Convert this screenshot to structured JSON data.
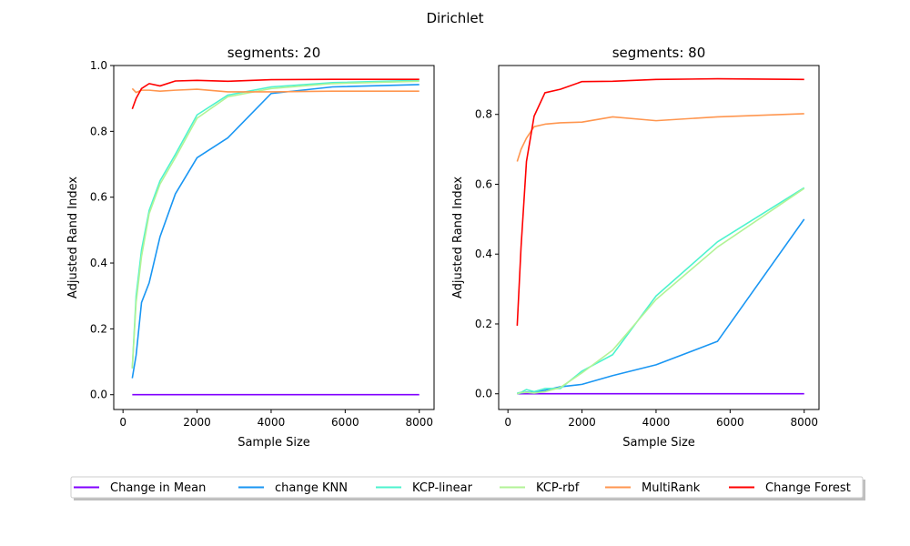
{
  "figure": {
    "suptitle": "Dirichlet"
  },
  "legend": {
    "position": "bottom-center",
    "entries": [
      {
        "name": "Change in Mean",
        "color": "#8000ff"
      },
      {
        "name": "change KNN",
        "color": "#1996f3"
      },
      {
        "name": "KCP-linear",
        "color": "#4df3ce"
      },
      {
        "name": "KCP-rbf",
        "color": "#b2f396"
      },
      {
        "name": "MultiRank",
        "color": "#ff964f"
      },
      {
        "name": "Change Forest",
        "color": "#ff0000"
      }
    ]
  },
  "chart_data": [
    {
      "type": "line",
      "title": "segments: 20",
      "xlabel": "Sample Size",
      "ylabel": "Adjusted Rand Index",
      "xlim": [
        -250,
        8400
      ],
      "ylim": [
        -0.045,
        1.0
      ],
      "xticks": [
        0,
        2000,
        4000,
        6000,
        8000
      ],
      "yticks": [
        0.0,
        0.2,
        0.4,
        0.6,
        0.8,
        1.0
      ],
      "ytick_labels": [
        "0.0",
        "0.2",
        "0.4",
        "0.6",
        "0.8",
        "1.0"
      ],
      "grid": false,
      "x": [
        250,
        354,
        500,
        707,
        1000,
        1414,
        2000,
        2828,
        4000,
        5657,
        8000
      ],
      "series": [
        {
          "name": "Change in Mean",
          "values": [
            0,
            0,
            0,
            0,
            0,
            0,
            0,
            0,
            0,
            0,
            0
          ]
        },
        {
          "name": "change KNN",
          "values": [
            0.05,
            0.12,
            0.28,
            0.34,
            0.48,
            0.61,
            0.72,
            0.78,
            0.915,
            0.935,
            0.942
          ]
        },
        {
          "name": "KCP-linear",
          "values": [
            0.08,
            0.3,
            0.44,
            0.56,
            0.65,
            0.73,
            0.85,
            0.91,
            0.935,
            0.948,
            0.955
          ]
        },
        {
          "name": "KCP-rbf",
          "values": [
            0.08,
            0.28,
            0.42,
            0.55,
            0.64,
            0.72,
            0.84,
            0.905,
            0.93,
            0.945,
            0.952
          ]
        },
        {
          "name": "MultiRank",
          "values": [
            0.93,
            0.918,
            0.925,
            0.925,
            0.922,
            0.925,
            0.928,
            0.92,
            0.92,
            0.922,
            0.922
          ]
        },
        {
          "name": "Change Forest",
          "values": [
            0.868,
            0.9,
            0.93,
            0.945,
            0.938,
            0.953,
            0.955,
            0.952,
            0.957,
            0.958,
            0.958
          ]
        }
      ]
    },
    {
      "type": "line",
      "title": "segments: 80",
      "xlabel": "Sample Size",
      "ylabel": "Adjusted Rand Index",
      "xlim": [
        -250,
        8400
      ],
      "ylim": [
        -0.045,
        0.94
      ],
      "xticks": [
        0,
        2000,
        4000,
        6000,
        8000
      ],
      "yticks": [
        0.0,
        0.2,
        0.4,
        0.6,
        0.8
      ],
      "ytick_labels": [
        "0.0",
        "0.2",
        "0.4",
        "0.6",
        "0.8"
      ],
      "grid": false,
      "x": [
        250,
        354,
        500,
        707,
        1000,
        1414,
        2000,
        2828,
        4000,
        5657,
        8000
      ],
      "series": [
        {
          "name": "Change in Mean",
          "values": [
            0,
            0,
            0,
            0,
            0,
            0,
            0,
            0,
            0,
            0,
            0
          ]
        },
        {
          "name": "change KNN",
          "values": [
            0.0,
            0.002,
            0.005,
            0.003,
            0.01,
            0.02,
            0.027,
            0.052,
            0.083,
            0.15,
            0.5
          ]
        },
        {
          "name": "KCP-linear",
          "values": [
            0.002,
            0.004,
            0.012,
            0.006,
            0.015,
            0.015,
            0.065,
            0.112,
            0.28,
            0.435,
            0.59
          ]
        },
        {
          "name": "KCP-rbf",
          "values": [
            0.0,
            0.003,
            0.004,
            0.002,
            0.006,
            0.018,
            0.06,
            0.125,
            0.27,
            0.42,
            0.588
          ]
        },
        {
          "name": "MultiRank",
          "values": [
            0.665,
            0.7,
            0.732,
            0.765,
            0.772,
            0.776,
            0.778,
            0.793,
            0.782,
            0.793,
            0.802
          ]
        },
        {
          "name": "Change Forest",
          "values": [
            0.195,
            0.42,
            0.665,
            0.795,
            0.862,
            0.872,
            0.894,
            0.895,
            0.9,
            0.902,
            0.9
          ]
        }
      ]
    }
  ]
}
